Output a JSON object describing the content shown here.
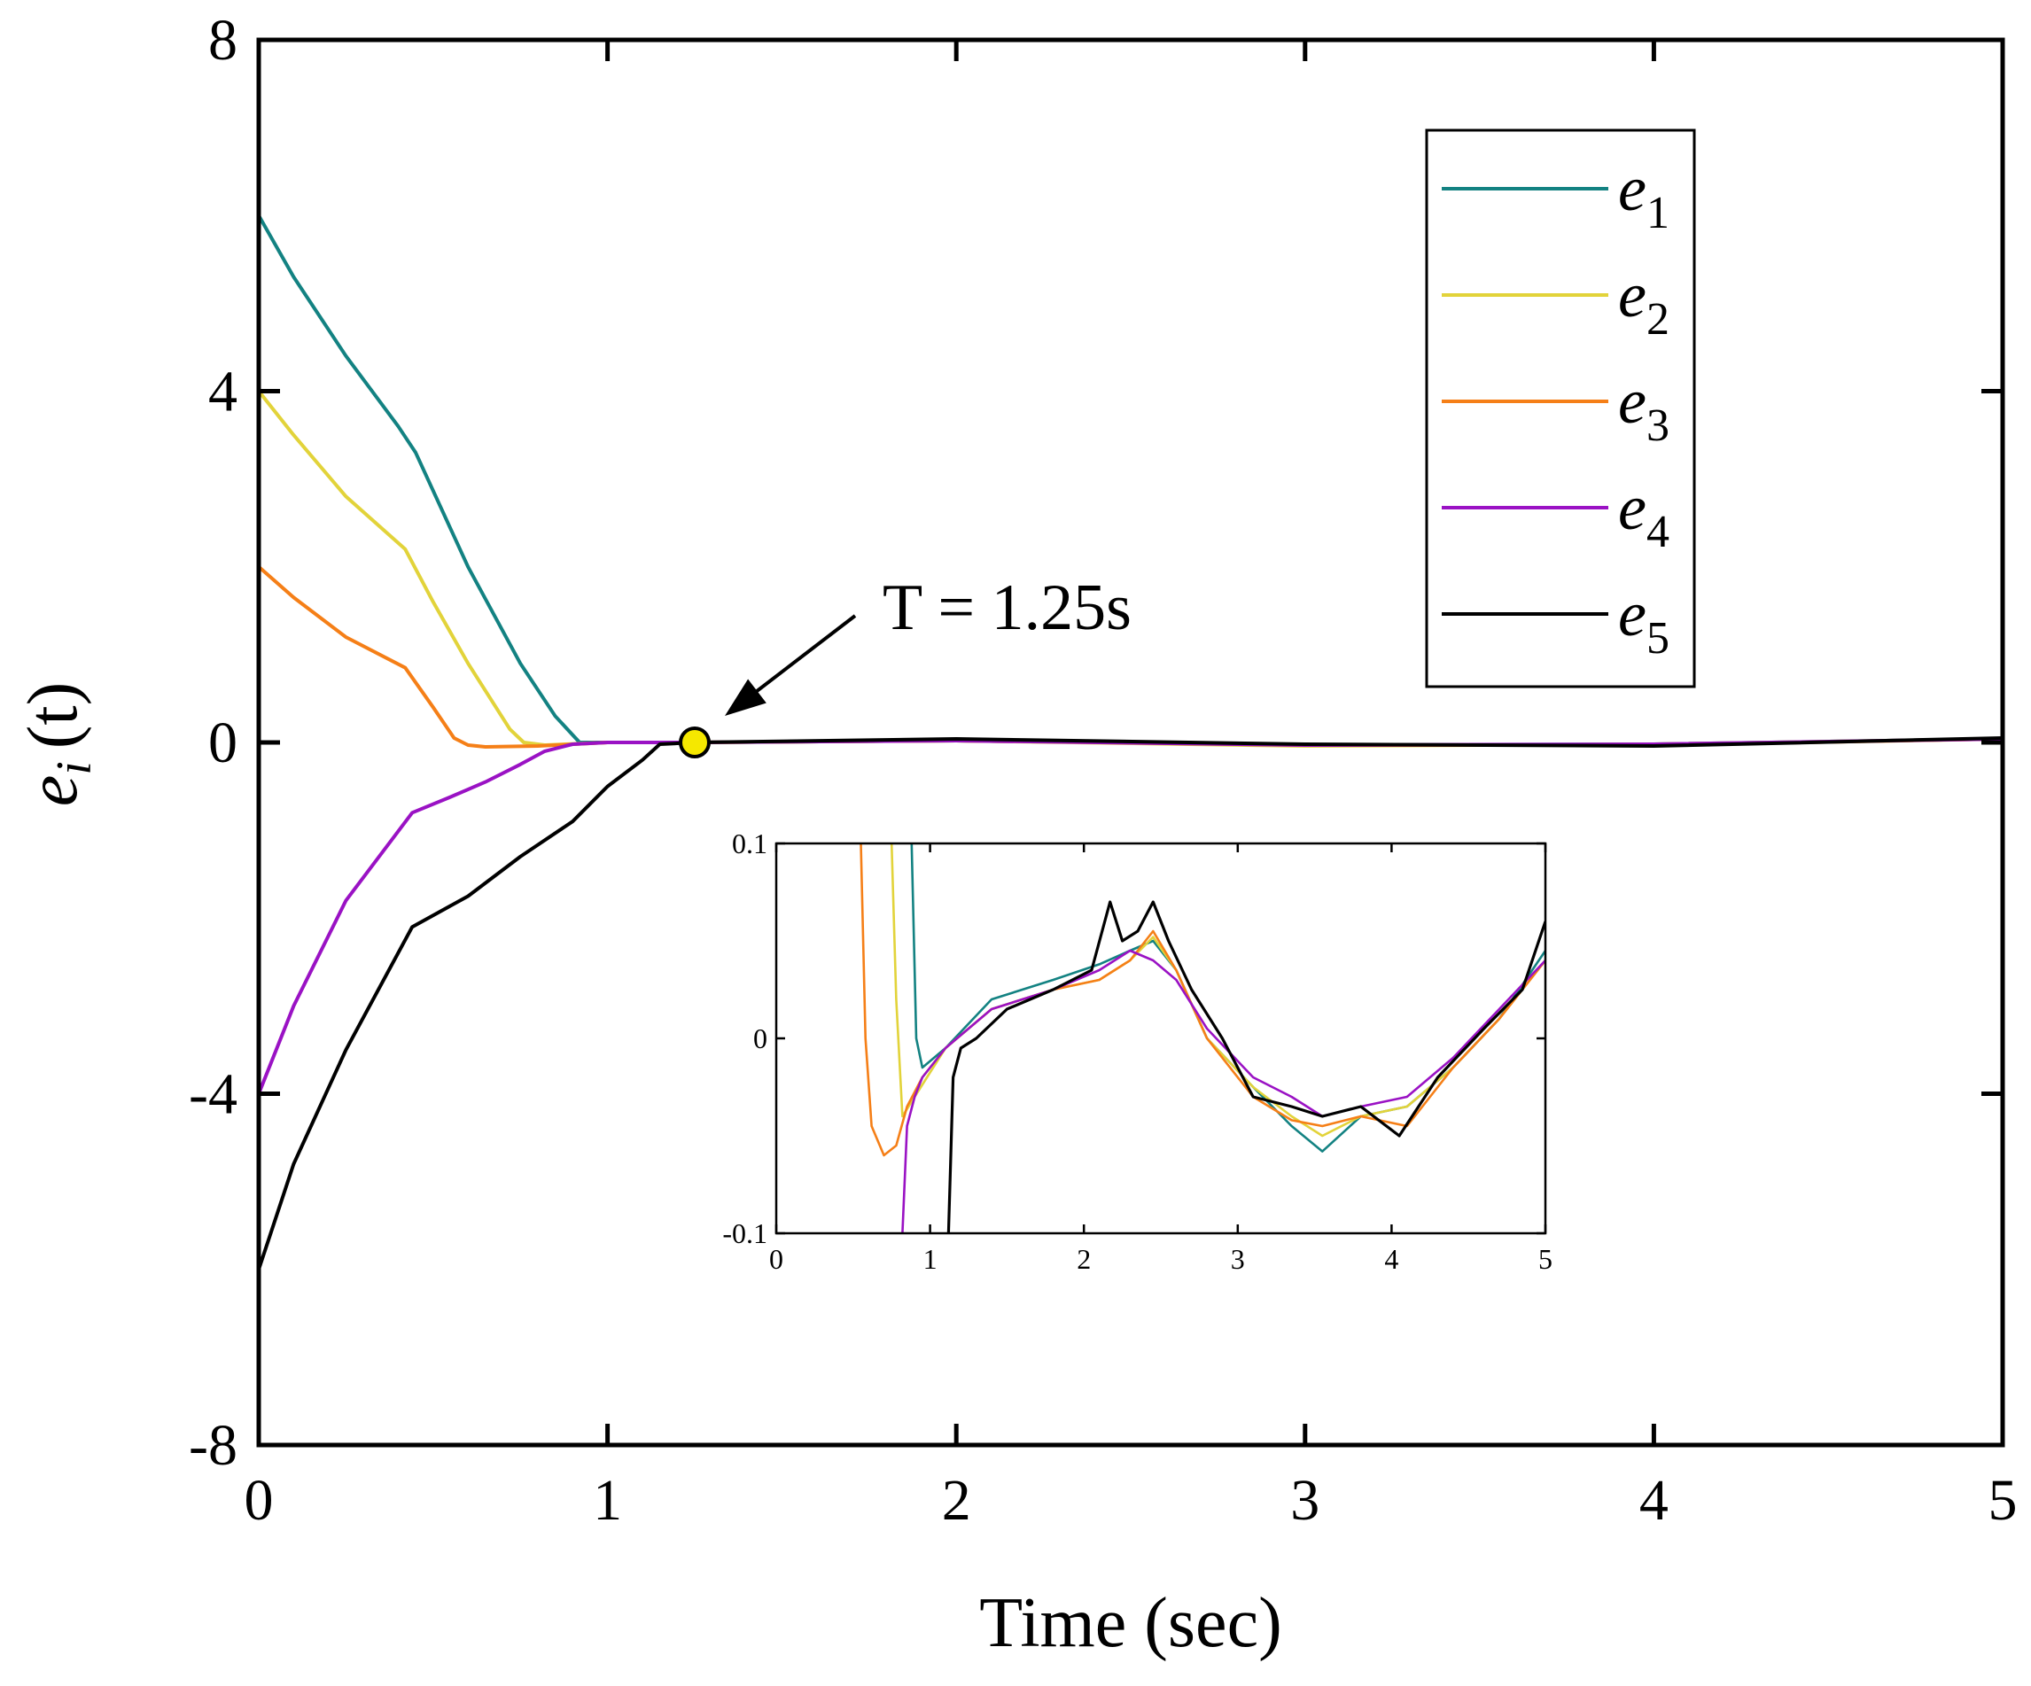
{
  "chart_data": {
    "type": "line",
    "xlabel": "Time (sec)",
    "ylabel": {
      "base": "e",
      "sub": "i",
      "rest": "(t)"
    },
    "xlim": [
      0,
      5
    ],
    "ylim": [
      -8,
      8
    ],
    "xticks": [
      0,
      1,
      2,
      3,
      4,
      5
    ],
    "yticks": [
      -8,
      -4,
      0,
      4,
      8
    ],
    "ytick_labels": [
      "-8",
      "-4",
      "0",
      "4",
      "8"
    ],
    "legend_position": "top-right",
    "grid": false,
    "series": [
      {
        "name": "e",
        "sub": "1",
        "color": "#138282",
        "x": [
          0,
          0.1,
          0.25,
          0.4,
          0.45,
          0.6,
          0.75,
          0.85,
          0.92,
          1.0,
          1.25,
          2.0,
          3.0,
          4.0,
          5.0
        ],
        "y": [
          6.0,
          5.3,
          4.4,
          3.6,
          3.3,
          2.0,
          0.9,
          0.3,
          0.0,
          0.0,
          0.0,
          0.02,
          -0.03,
          -0.02,
          0.04
        ]
      },
      {
        "name": "e",
        "sub": "2",
        "color": "#e2d33a",
        "x": [
          0,
          0.1,
          0.25,
          0.42,
          0.5,
          0.6,
          0.72,
          0.76,
          0.82,
          1.0,
          1.25,
          2.0,
          3.0,
          4.0,
          5.0
        ],
        "y": [
          4.0,
          3.5,
          2.8,
          2.2,
          1.6,
          0.9,
          0.15,
          0.0,
          -0.03,
          0.0,
          0.0,
          0.02,
          -0.04,
          -0.02,
          0.04
        ]
      },
      {
        "name": "e",
        "sub": "3",
        "color": "#f57f17",
        "x": [
          0,
          0.1,
          0.25,
          0.42,
          0.5,
          0.56,
          0.6,
          0.65,
          0.8,
          1.0,
          1.25,
          2.0,
          3.0,
          4.0,
          5.0
        ],
        "y": [
          2.0,
          1.65,
          1.2,
          0.85,
          0.4,
          0.05,
          -0.03,
          -0.05,
          -0.04,
          0.0,
          0.0,
          0.02,
          -0.03,
          -0.03,
          0.04
        ]
      },
      {
        "name": "e",
        "sub": "4",
        "color": "#9a12c4",
        "x": [
          0,
          0.1,
          0.25,
          0.44,
          0.55,
          0.65,
          0.75,
          0.82,
          0.9,
          1.0,
          1.25,
          2.0,
          3.0,
          4.0,
          5.0
        ],
        "y": [
          -4.0,
          -3.0,
          -1.8,
          -0.8,
          -0.62,
          -0.45,
          -0.25,
          -0.1,
          -0.02,
          0.0,
          0.0,
          0.02,
          -0.03,
          -0.02,
          0.04
        ]
      },
      {
        "name": "e",
        "sub": "5",
        "color": "#000000",
        "x": [
          0,
          0.1,
          0.25,
          0.44,
          0.6,
          0.75,
          0.9,
          1.0,
          1.1,
          1.15,
          1.25,
          2.0,
          3.0,
          4.0,
          5.0
        ],
        "y": [
          -6.0,
          -4.8,
          -3.5,
          -2.1,
          -1.75,
          -1.3,
          -0.9,
          -0.5,
          -0.2,
          -0.02,
          0.0,
          0.04,
          -0.02,
          -0.04,
          0.05
        ]
      }
    ],
    "annotation": {
      "text": "T = 1.25s",
      "point_x": 1.25,
      "point_y": 0,
      "marker_color": "#f5e800"
    },
    "inset": {
      "xlim": [
        0,
        5
      ],
      "ylim": [
        -0.1,
        0.1
      ],
      "xticks": [
        0,
        1,
        2,
        3,
        4,
        5
      ],
      "yticks": [
        -0.1,
        0,
        0.1
      ],
      "ytick_labels": [
        "-0.1",
        "0",
        "0.1"
      ],
      "series": [
        {
          "color": "#138282",
          "x": [
            0.88,
            0.91,
            0.95,
            1.1,
            1.4,
            1.8,
            2.1,
            2.3,
            2.45,
            2.6,
            2.8,
            3.1,
            3.35,
            3.55,
            3.8,
            4.1,
            4.4,
            4.7,
            5.0
          ],
          "y": [
            0.1,
            0.0,
            -0.015,
            -0.005,
            0.02,
            0.03,
            0.038,
            0.045,
            0.05,
            0.035,
            0.0,
            -0.025,
            -0.045,
            -0.058,
            -0.04,
            -0.035,
            -0.015,
            0.01,
            0.045
          ]
        },
        {
          "color": "#e2d33a",
          "x": [
            0.75,
            0.78,
            0.82,
            0.9,
            1.1,
            1.4,
            1.8,
            2.1,
            2.3,
            2.45,
            2.6,
            2.8,
            3.1,
            3.35,
            3.55,
            3.8,
            4.1,
            4.4,
            4.7,
            5.0
          ],
          "y": [
            0.1,
            0.02,
            -0.04,
            -0.03,
            -0.005,
            0.015,
            0.025,
            0.03,
            0.04,
            0.052,
            0.035,
            0.0,
            -0.025,
            -0.04,
            -0.05,
            -0.04,
            -0.035,
            -0.015,
            0.01,
            0.04
          ]
        },
        {
          "color": "#f57f17",
          "x": [
            0.55,
            0.58,
            0.62,
            0.7,
            0.78,
            0.85,
            0.95,
            1.1,
            1.4,
            1.8,
            2.1,
            2.3,
            2.45,
            2.6,
            2.8,
            3.1,
            3.35,
            3.55,
            3.8,
            4.1,
            4.4,
            4.7,
            5.0
          ],
          "y": [
            0.1,
            0.0,
            -0.045,
            -0.06,
            -0.055,
            -0.035,
            -0.02,
            -0.005,
            0.015,
            0.025,
            0.03,
            0.04,
            0.055,
            0.035,
            0.0,
            -0.03,
            -0.042,
            -0.045,
            -0.04,
            -0.045,
            -0.015,
            0.01,
            0.04
          ]
        },
        {
          "color": "#9a12c4",
          "x": [
            0.82,
            0.85,
            0.9,
            0.95,
            1.1,
            1.4,
            1.8,
            2.1,
            2.3,
            2.45,
            2.6,
            2.8,
            3.1,
            3.35,
            3.55,
            3.8,
            4.1,
            4.4,
            4.7,
            5.0
          ],
          "y": [
            -0.1,
            -0.045,
            -0.03,
            -0.02,
            -0.005,
            0.015,
            0.025,
            0.035,
            0.045,
            0.04,
            0.03,
            0.005,
            -0.02,
            -0.03,
            -0.04,
            -0.035,
            -0.03,
            -0.01,
            0.015,
            0.04
          ]
        },
        {
          "color": "#000000",
          "x": [
            1.12,
            1.15,
            1.2,
            1.3,
            1.5,
            1.8,
            2.05,
            2.17,
            2.25,
            2.35,
            2.45,
            2.55,
            2.7,
            2.9,
            3.1,
            3.35,
            3.55,
            3.8,
            4.05,
            4.3,
            4.6,
            4.85,
            5.0
          ],
          "y": [
            -0.1,
            -0.02,
            -0.005,
            0.0,
            0.015,
            0.025,
            0.035,
            0.07,
            0.05,
            0.055,
            0.07,
            0.05,
            0.025,
            0.0,
            -0.03,
            -0.035,
            -0.04,
            -0.035,
            -0.05,
            -0.02,
            0.005,
            0.025,
            0.06
          ]
        }
      ]
    }
  }
}
